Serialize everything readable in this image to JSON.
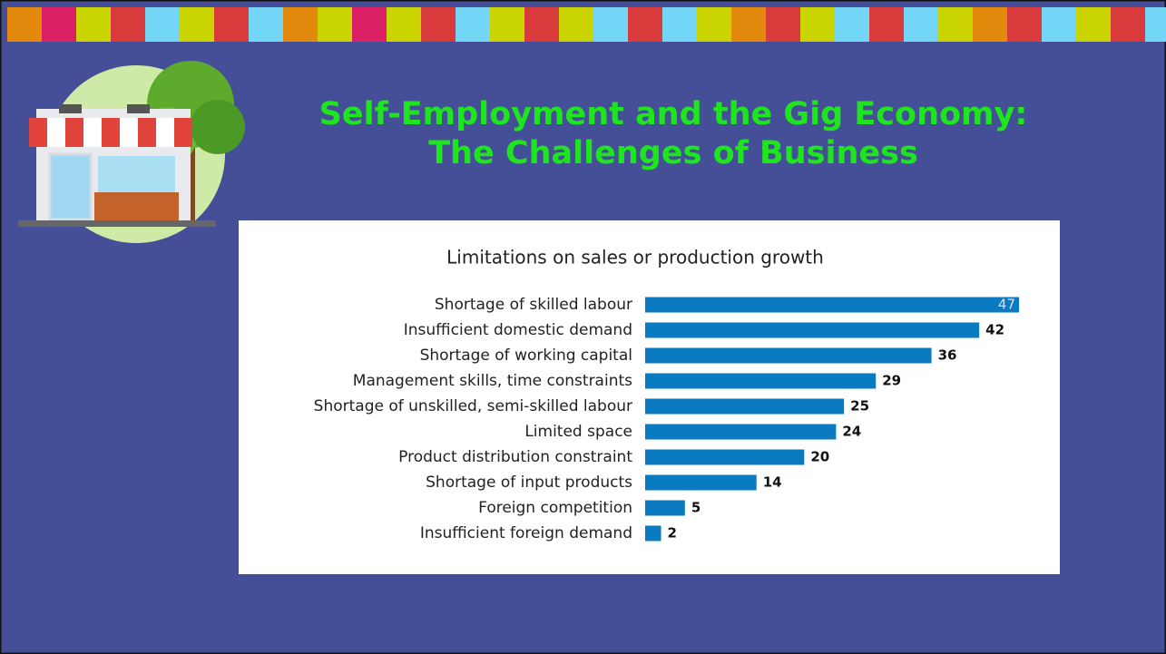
{
  "slide": {
    "title": [
      "Self-Employment and the Gig Economy:",
      "The Challenges of Business"
    ]
  },
  "chart_data": {
    "type": "bar",
    "orientation": "horizontal",
    "title": "Limitations on sales or production growth",
    "categories": [
      "Shortage of skilled labour",
      "Insufficient domestic demand",
      "Shortage of working capital",
      "Management skills, time constraints",
      "Shortage of unskilled, semi-skilled labour",
      "Limited space",
      "Product distribution constraint",
      "Shortage of input products",
      "Foreign competition",
      "Insufficient foreign demand"
    ],
    "values": [
      47,
      42,
      36,
      29,
      25,
      24,
      20,
      14,
      5,
      2
    ],
    "color": "#0b7bc1"
  }
}
